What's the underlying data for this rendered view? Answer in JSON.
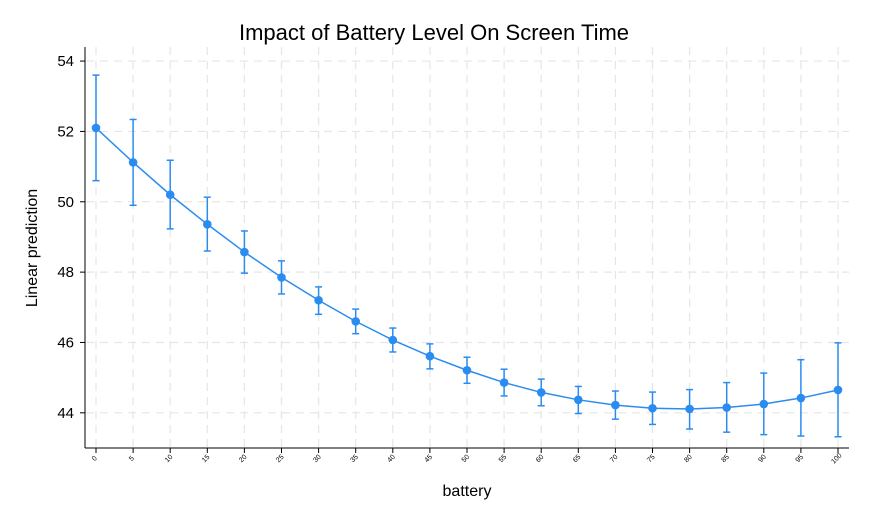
{
  "chart_data": {
    "type": "line",
    "title": "Impact of Battery Level On Screen Time",
    "xlabel": "battery",
    "ylabel": "Linear prediction",
    "x": [
      0,
      5,
      10,
      15,
      20,
      25,
      30,
      35,
      40,
      45,
      50,
      55,
      60,
      65,
      70,
      75,
      80,
      85,
      90,
      95,
      100
    ],
    "x_tick_labels": [
      "0",
      "5",
      "10",
      "15",
      "20",
      "25",
      "30",
      "35",
      "40",
      "45",
      "50",
      "55",
      "60",
      "65",
      "70",
      "75",
      "80",
      "85",
      "90",
      "95",
      "100"
    ],
    "y_ticks": [
      44,
      46,
      48,
      50,
      52,
      54
    ],
    "ylim": [
      43.0,
      54.4
    ],
    "grid": true,
    "series": [
      {
        "values": [
          52.1,
          51.12,
          50.2,
          49.36,
          48.57,
          47.85,
          47.2,
          46.6,
          46.07,
          45.61,
          45.21,
          44.86,
          44.58,
          44.37,
          44.22,
          44.13,
          44.11,
          44.15,
          44.25,
          44.42,
          44.65
        ],
        "ci_lower": [
          50.6,
          49.9,
          49.23,
          48.6,
          47.97,
          47.38,
          46.8,
          46.25,
          45.73,
          45.25,
          44.84,
          44.48,
          44.2,
          43.98,
          43.82,
          43.67,
          43.54,
          43.45,
          43.38,
          43.34,
          43.32
        ],
        "ci_upper": [
          53.6,
          52.34,
          51.18,
          50.13,
          49.17,
          48.32,
          47.58,
          46.95,
          46.41,
          45.96,
          45.58,
          45.24,
          44.96,
          44.75,
          44.62,
          44.59,
          44.66,
          44.86,
          45.13,
          45.51,
          45.99
        ]
      }
    ],
    "colors": {
      "series": "#2b8cf0",
      "grid": "#e6e6e6",
      "axis": "#000000"
    }
  }
}
